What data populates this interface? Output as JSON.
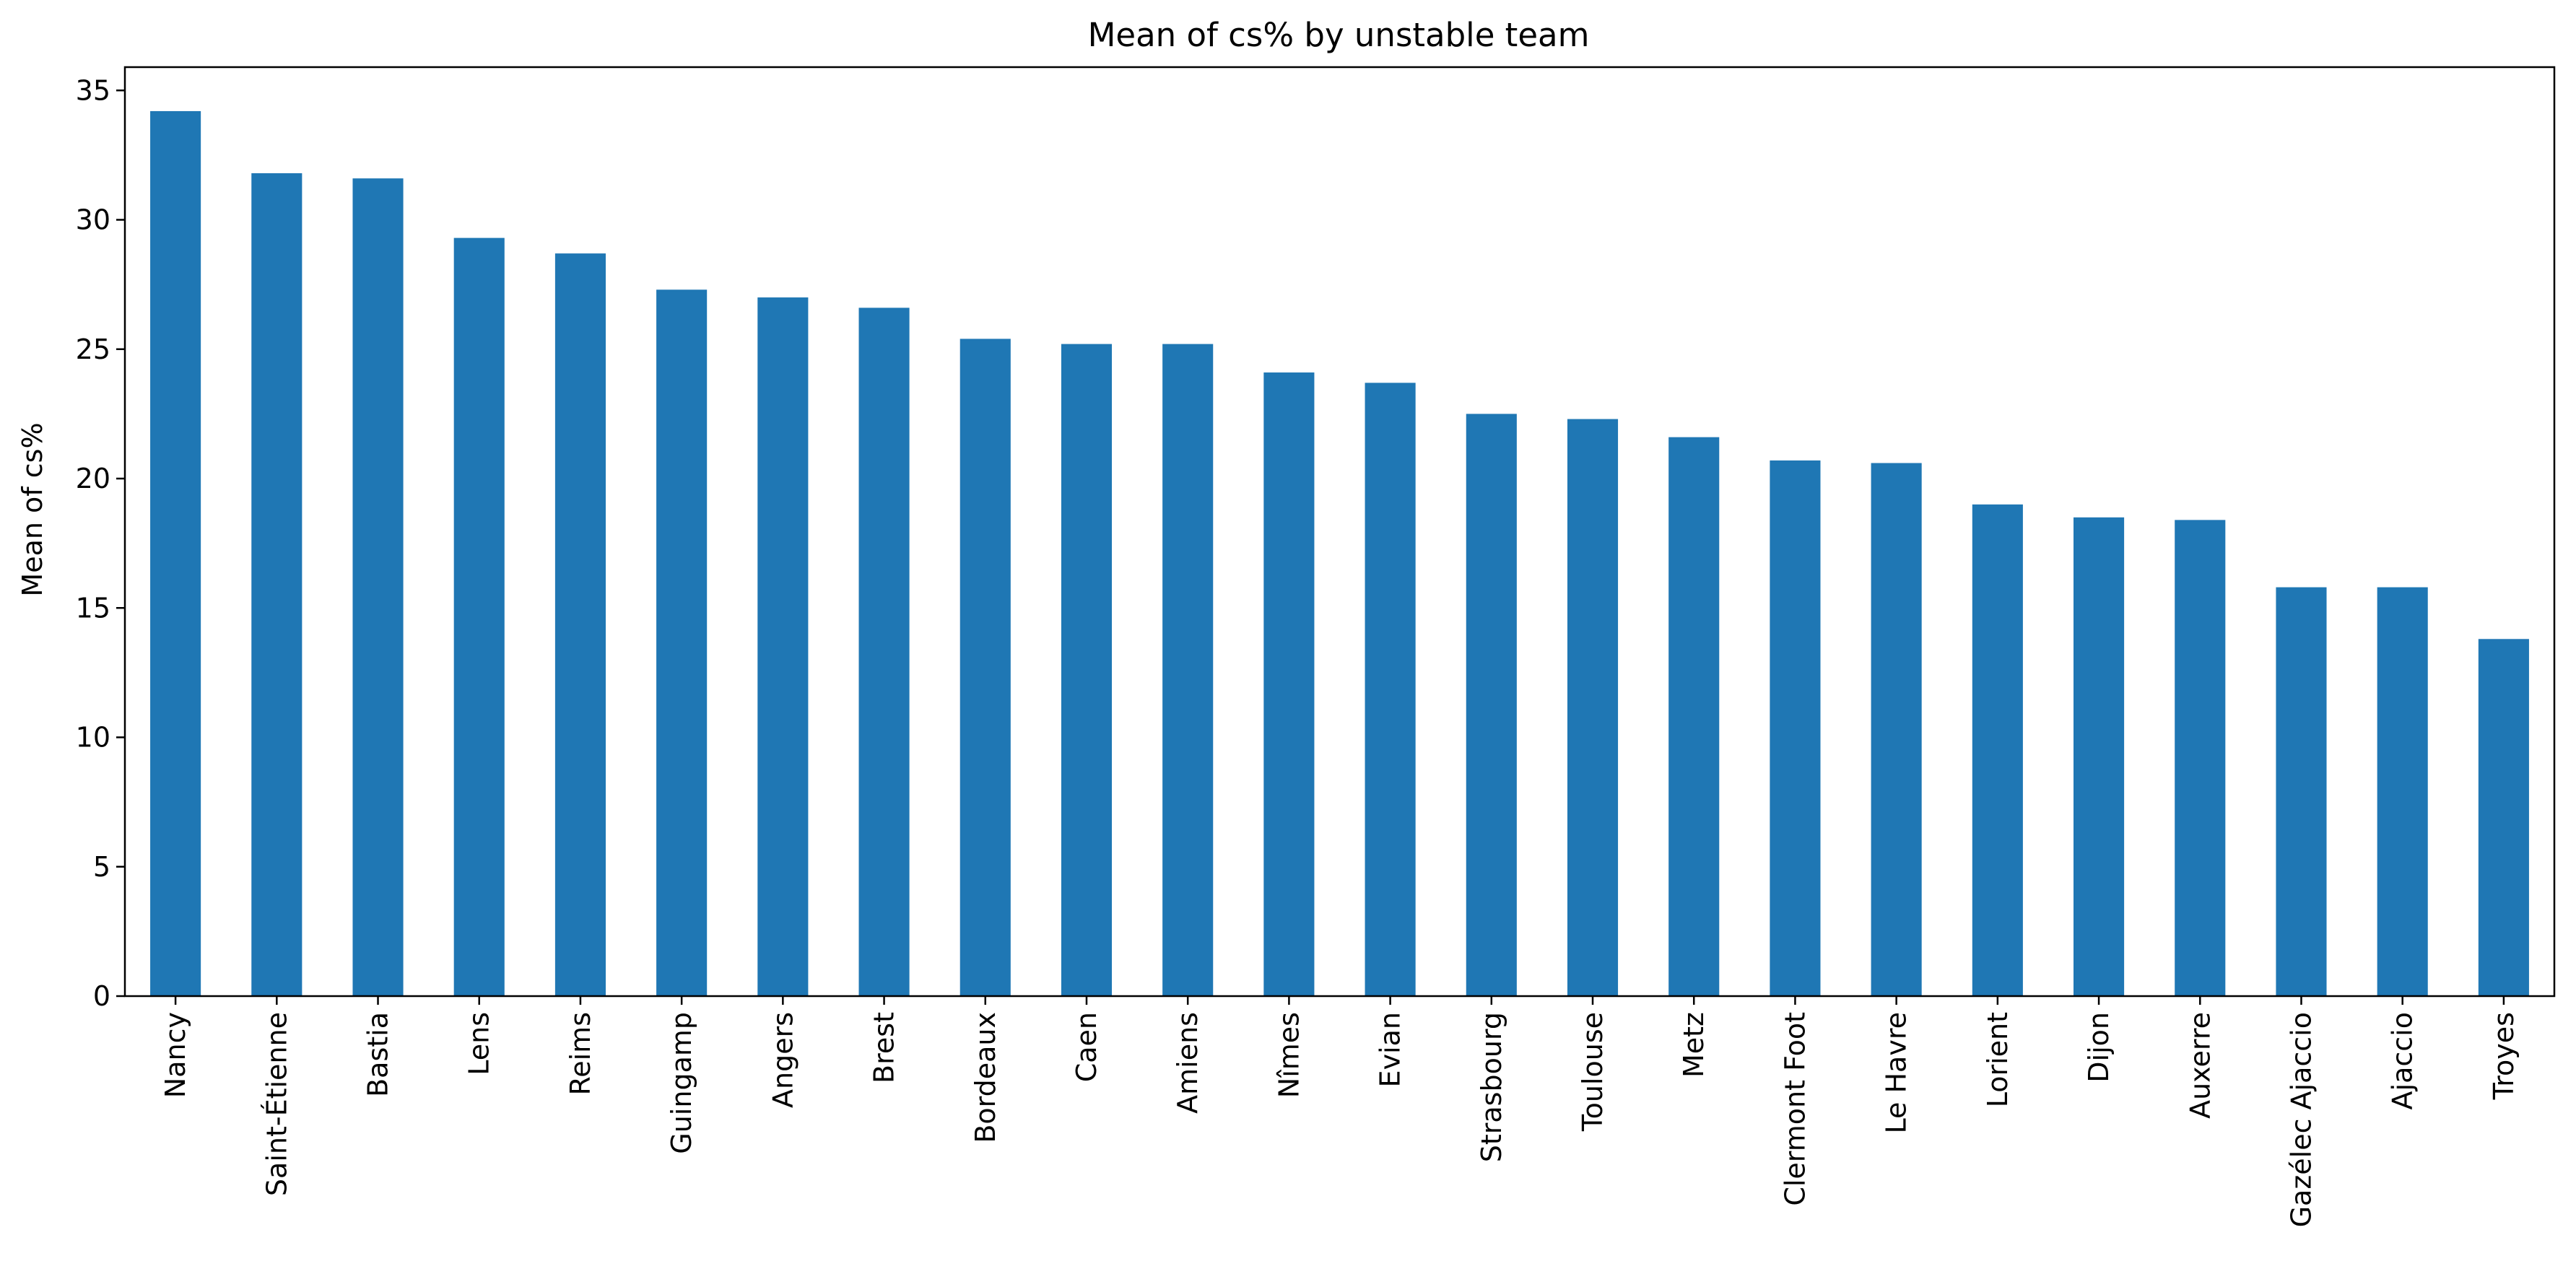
{
  "chart_data": {
    "type": "bar",
    "title": "Mean of cs% by unstable team",
    "xlabel": "",
    "ylabel": "Mean of cs%",
    "categories": [
      "Nancy",
      "Saint-Étienne",
      "Bastia",
      "Lens",
      "Reims",
      "Guingamp",
      "Angers",
      "Brest",
      "Bordeaux",
      "Caen",
      "Amiens",
      "Nîmes",
      "Evian",
      "Strasbourg",
      "Toulouse",
      "Metz",
      "Clermont Foot",
      "Le Havre",
      "Lorient",
      "Dijon",
      "Auxerre",
      "Gazélec Ajaccio",
      "Ajaccio",
      "Troyes"
    ],
    "values": [
      34.2,
      31.8,
      31.6,
      29.3,
      28.7,
      27.3,
      27.0,
      26.6,
      25.4,
      25.2,
      25.2,
      24.1,
      23.7,
      22.5,
      22.3,
      21.6,
      20.7,
      20.6,
      19.0,
      18.5,
      18.4,
      15.8,
      15.8,
      13.8
    ],
    "yticks": [
      0,
      5,
      10,
      15,
      20,
      25,
      30,
      35
    ],
    "ylim": [
      0,
      35.9
    ],
    "grid": false,
    "bar_color": "#1f77b4"
  }
}
